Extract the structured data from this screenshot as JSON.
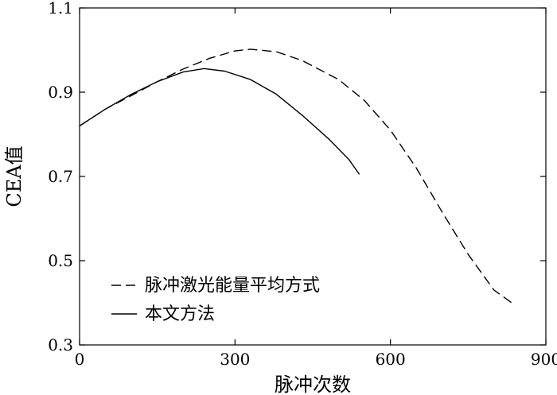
{
  "chart_data": {
    "type": "line",
    "xlabel": "脉冲次数",
    "ylabel": "CEA值",
    "xlim": [
      0,
      900
    ],
    "ylim": [
      0.3,
      1.1
    ],
    "xticks": [
      0,
      300,
      600,
      900
    ],
    "yticks": [
      0.3,
      0.5,
      0.7,
      0.9,
      1.1
    ],
    "x_tick_labels": [
      "0",
      "300",
      "600",
      "900"
    ],
    "y_tick_labels": [
      "0.3",
      "0.5",
      "0.7",
      "0.9",
      "1.1"
    ],
    "grid": false,
    "legend_position": "bottom-left",
    "series": [
      {
        "name": "脉冲激光能量平均方式",
        "style": "dashed",
        "color": "#000000",
        "points": [
          [
            0,
            0.82
          ],
          [
            50,
            0.86
          ],
          [
            100,
            0.892
          ],
          [
            150,
            0.925
          ],
          [
            200,
            0.955
          ],
          [
            250,
            0.98
          ],
          [
            300,
            0.998
          ],
          [
            330,
            1.002
          ],
          [
            380,
            0.996
          ],
          [
            430,
            0.975
          ],
          [
            500,
            0.93
          ],
          [
            550,
            0.88
          ],
          [
            600,
            0.81
          ],
          [
            650,
            0.72
          ],
          [
            700,
            0.615
          ],
          [
            750,
            0.515
          ],
          [
            800,
            0.43
          ],
          [
            840,
            0.395
          ]
        ]
      },
      {
        "name": "本文方法",
        "style": "solid",
        "color": "#000000",
        "points": [
          [
            0,
            0.82
          ],
          [
            50,
            0.86
          ],
          [
            100,
            0.895
          ],
          [
            150,
            0.925
          ],
          [
            200,
            0.948
          ],
          [
            240,
            0.956
          ],
          [
            280,
            0.95
          ],
          [
            330,
            0.93
          ],
          [
            380,
            0.895
          ],
          [
            430,
            0.845
          ],
          [
            480,
            0.79
          ],
          [
            520,
            0.74
          ],
          [
            540,
            0.705
          ]
        ]
      }
    ]
  }
}
